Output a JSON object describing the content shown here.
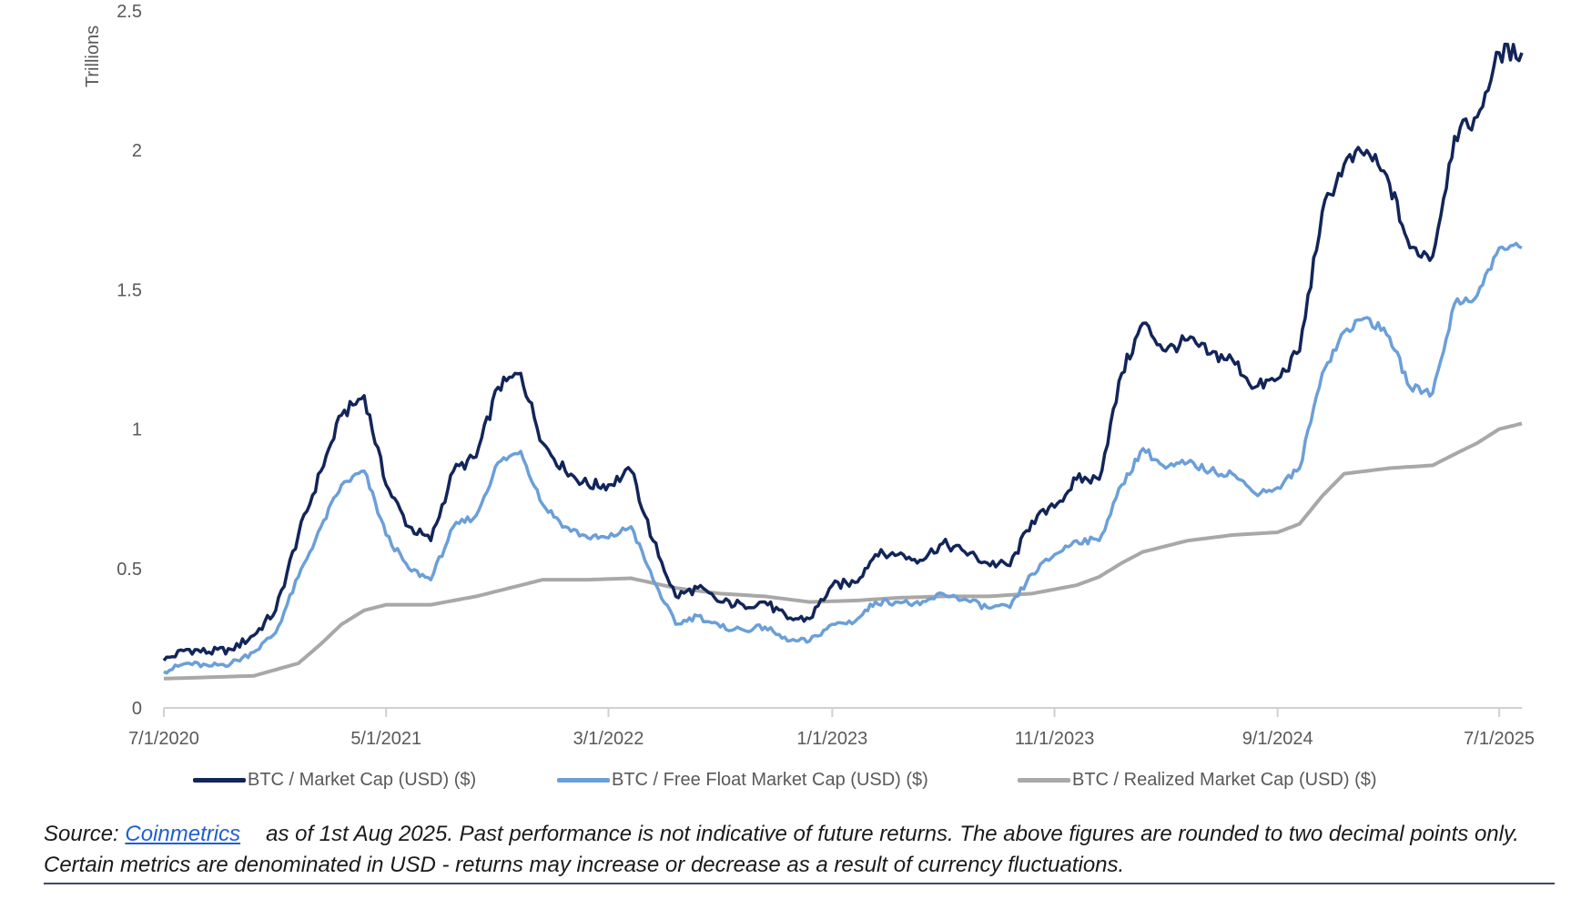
{
  "chart_data": {
    "type": "line",
    "ylabel": "Trillions",
    "ylim": [
      0,
      2.5
    ],
    "y_ticks": [
      "0",
      "0.5",
      "1",
      "1.5",
      "2",
      "2.5"
    ],
    "x_ticks": [
      "7/1/2020",
      "5/1/2021",
      "3/1/2022",
      "1/1/2023",
      "11/1/2023",
      "9/1/2024",
      "7/1/2025"
    ],
    "x_range": [
      "2020-07-01",
      "2025-08-01"
    ],
    "grid": false,
    "legend_position": "bottom",
    "series": [
      {
        "name": "BTC / Market Cap (USD) ($)",
        "color": "#12255a",
        "points": [
          [
            "2020-07-01",
            0.17
          ],
          [
            "2020-08-01",
            0.21
          ],
          [
            "2020-09-01",
            0.2
          ],
          [
            "2020-10-01",
            0.21
          ],
          [
            "2020-11-01",
            0.26
          ],
          [
            "2020-12-01",
            0.35
          ],
          [
            "2021-01-01",
            0.62
          ],
          [
            "2021-02-01",
            0.85
          ],
          [
            "2021-03-01",
            1.05
          ],
          [
            "2021-04-01",
            1.12
          ],
          [
            "2021-05-01",
            0.8
          ],
          [
            "2021-06-01",
            0.65
          ],
          [
            "2021-07-01",
            0.6
          ],
          [
            "2021-08-01",
            0.85
          ],
          [
            "2021-09-01",
            0.9
          ],
          [
            "2021-10-01",
            1.15
          ],
          [
            "2021-11-01",
            1.2
          ],
          [
            "2021-12-01",
            0.95
          ],
          [
            "2022-01-01",
            0.85
          ],
          [
            "2022-02-01",
            0.8
          ],
          [
            "2022-03-01",
            0.8
          ],
          [
            "2022-04-01",
            0.85
          ],
          [
            "2022-05-01",
            0.6
          ],
          [
            "2022-06-01",
            0.4
          ],
          [
            "2022-07-01",
            0.43
          ],
          [
            "2022-08-01",
            0.38
          ],
          [
            "2022-09-01",
            0.37
          ],
          [
            "2022-10-01",
            0.38
          ],
          [
            "2022-11-01",
            0.32
          ],
          [
            "2022-12-01",
            0.32
          ],
          [
            "2023-01-01",
            0.44
          ],
          [
            "2023-02-01",
            0.45
          ],
          [
            "2023-03-01",
            0.55
          ],
          [
            "2023-04-01",
            0.55
          ],
          [
            "2023-05-01",
            0.53
          ],
          [
            "2023-06-01",
            0.59
          ],
          [
            "2023-07-01",
            0.56
          ],
          [
            "2023-08-01",
            0.52
          ],
          [
            "2023-09-01",
            0.51
          ],
          [
            "2023-10-01",
            0.67
          ],
          [
            "2023-11-01",
            0.72
          ],
          [
            "2023-12-01",
            0.82
          ],
          [
            "2024-01-01",
            0.82
          ],
          [
            "2024-02-01",
            1.2
          ],
          [
            "2024-03-01",
            1.38
          ],
          [
            "2024-04-01",
            1.28
          ],
          [
            "2024-05-01",
            1.32
          ],
          [
            "2024-06-01",
            1.27
          ],
          [
            "2024-07-01",
            1.25
          ],
          [
            "2024-08-01",
            1.15
          ],
          [
            "2024-09-01",
            1.18
          ],
          [
            "2024-10-01",
            1.28
          ],
          [
            "2024-11-01",
            1.78
          ],
          [
            "2024-12-01",
            1.95
          ],
          [
            "2025-01-01",
            2.0
          ],
          [
            "2025-02-01",
            1.88
          ],
          [
            "2025-03-01",
            1.65
          ],
          [
            "2025-04-01",
            1.62
          ],
          [
            "2025-05-01",
            2.05
          ],
          [
            "2025-06-01",
            2.12
          ],
          [
            "2025-07-01",
            2.35
          ],
          [
            "2025-08-01",
            2.35
          ]
        ]
      },
      {
        "name": "BTC / Free Float Market Cap (USD) ($)",
        "color": "#6b9fd8",
        "points": [
          [
            "2020-07-01",
            0.13
          ],
          [
            "2020-08-01",
            0.16
          ],
          [
            "2020-09-01",
            0.15
          ],
          [
            "2020-10-01",
            0.16
          ],
          [
            "2020-11-01",
            0.2
          ],
          [
            "2020-12-01",
            0.27
          ],
          [
            "2021-01-01",
            0.47
          ],
          [
            "2021-02-01",
            0.65
          ],
          [
            "2021-03-01",
            0.8
          ],
          [
            "2021-04-01",
            0.85
          ],
          [
            "2021-05-01",
            0.62
          ],
          [
            "2021-06-01",
            0.5
          ],
          [
            "2021-07-01",
            0.46
          ],
          [
            "2021-08-01",
            0.65
          ],
          [
            "2021-09-01",
            0.69
          ],
          [
            "2021-10-01",
            0.88
          ],
          [
            "2021-11-01",
            0.92
          ],
          [
            "2021-12-01",
            0.73
          ],
          [
            "2022-01-01",
            0.65
          ],
          [
            "2022-02-01",
            0.61
          ],
          [
            "2022-03-01",
            0.61
          ],
          [
            "2022-04-01",
            0.65
          ],
          [
            "2022-05-01",
            0.46
          ],
          [
            "2022-06-01",
            0.3
          ],
          [
            "2022-07-01",
            0.33
          ],
          [
            "2022-08-01",
            0.29
          ],
          [
            "2022-09-01",
            0.28
          ],
          [
            "2022-10-01",
            0.29
          ],
          [
            "2022-11-01",
            0.24
          ],
          [
            "2022-12-01",
            0.24
          ],
          [
            "2023-01-01",
            0.3
          ],
          [
            "2023-02-01",
            0.31
          ],
          [
            "2023-03-01",
            0.38
          ],
          [
            "2023-04-01",
            0.38
          ],
          [
            "2023-05-01",
            0.37
          ],
          [
            "2023-06-01",
            0.41
          ],
          [
            "2023-07-01",
            0.39
          ],
          [
            "2023-08-01",
            0.36
          ],
          [
            "2023-09-01",
            0.36
          ],
          [
            "2023-10-01",
            0.48
          ],
          [
            "2023-11-01",
            0.55
          ],
          [
            "2023-12-01",
            0.6
          ],
          [
            "2024-01-01",
            0.6
          ],
          [
            "2024-02-01",
            0.8
          ],
          [
            "2024-03-01",
            0.93
          ],
          [
            "2024-04-01",
            0.86
          ],
          [
            "2024-05-01",
            0.88
          ],
          [
            "2024-06-01",
            0.85
          ],
          [
            "2024-07-01",
            0.84
          ],
          [
            "2024-08-01",
            0.77
          ],
          [
            "2024-09-01",
            0.79
          ],
          [
            "2024-10-01",
            0.86
          ],
          [
            "2024-11-01",
            1.2
          ],
          [
            "2024-12-01",
            1.35
          ],
          [
            "2025-01-01",
            1.4
          ],
          [
            "2025-02-01",
            1.33
          ],
          [
            "2025-03-01",
            1.15
          ],
          [
            "2025-04-01",
            1.13
          ],
          [
            "2025-05-01",
            1.45
          ],
          [
            "2025-06-01",
            1.48
          ],
          [
            "2025-07-01",
            1.65
          ],
          [
            "2025-08-01",
            1.65
          ]
        ]
      },
      {
        "name": "BTC / Realized Market Cap (USD) ($)",
        "color": "#a8a8a8",
        "points": [
          [
            "2020-07-01",
            0.105
          ],
          [
            "2020-09-01",
            0.11
          ],
          [
            "2020-11-01",
            0.115
          ],
          [
            "2021-01-01",
            0.16
          ],
          [
            "2021-02-01",
            0.23
          ],
          [
            "2021-03-01",
            0.3
          ],
          [
            "2021-04-01",
            0.35
          ],
          [
            "2021-05-01",
            0.37
          ],
          [
            "2021-07-01",
            0.37
          ],
          [
            "2021-09-01",
            0.4
          ],
          [
            "2021-11-01",
            0.44
          ],
          [
            "2021-12-01",
            0.46
          ],
          [
            "2022-02-01",
            0.46
          ],
          [
            "2022-04-01",
            0.465
          ],
          [
            "2022-06-01",
            0.43
          ],
          [
            "2022-08-01",
            0.41
          ],
          [
            "2022-10-01",
            0.4
          ],
          [
            "2022-12-01",
            0.38
          ],
          [
            "2023-02-01",
            0.385
          ],
          [
            "2023-04-01",
            0.395
          ],
          [
            "2023-06-01",
            0.4
          ],
          [
            "2023-08-01",
            0.4
          ],
          [
            "2023-10-01",
            0.41
          ],
          [
            "2023-12-01",
            0.44
          ],
          [
            "2024-01-01",
            0.47
          ],
          [
            "2024-02-01",
            0.52
          ],
          [
            "2024-03-01",
            0.56
          ],
          [
            "2024-05-01",
            0.6
          ],
          [
            "2024-07-01",
            0.62
          ],
          [
            "2024-09-01",
            0.63
          ],
          [
            "2024-10-01",
            0.66
          ],
          [
            "2024-11-01",
            0.76
          ],
          [
            "2024-12-01",
            0.84
          ],
          [
            "2025-02-01",
            0.86
          ],
          [
            "2025-04-01",
            0.87
          ],
          [
            "2025-05-01",
            0.91
          ],
          [
            "2025-06-01",
            0.95
          ],
          [
            "2025-07-01",
            1.0
          ],
          [
            "2025-08-01",
            1.02
          ]
        ]
      }
    ]
  },
  "source": {
    "prefix": "Source: ",
    "link_text": "Coinmetrics",
    "text": "as of 1st Aug 2025. Past performance is not indicative of future returns. The above figures are rounded to two decimal points only. Certain metrics are denominated in USD - returns may increase or decrease as a result of currency fluctuations."
  }
}
